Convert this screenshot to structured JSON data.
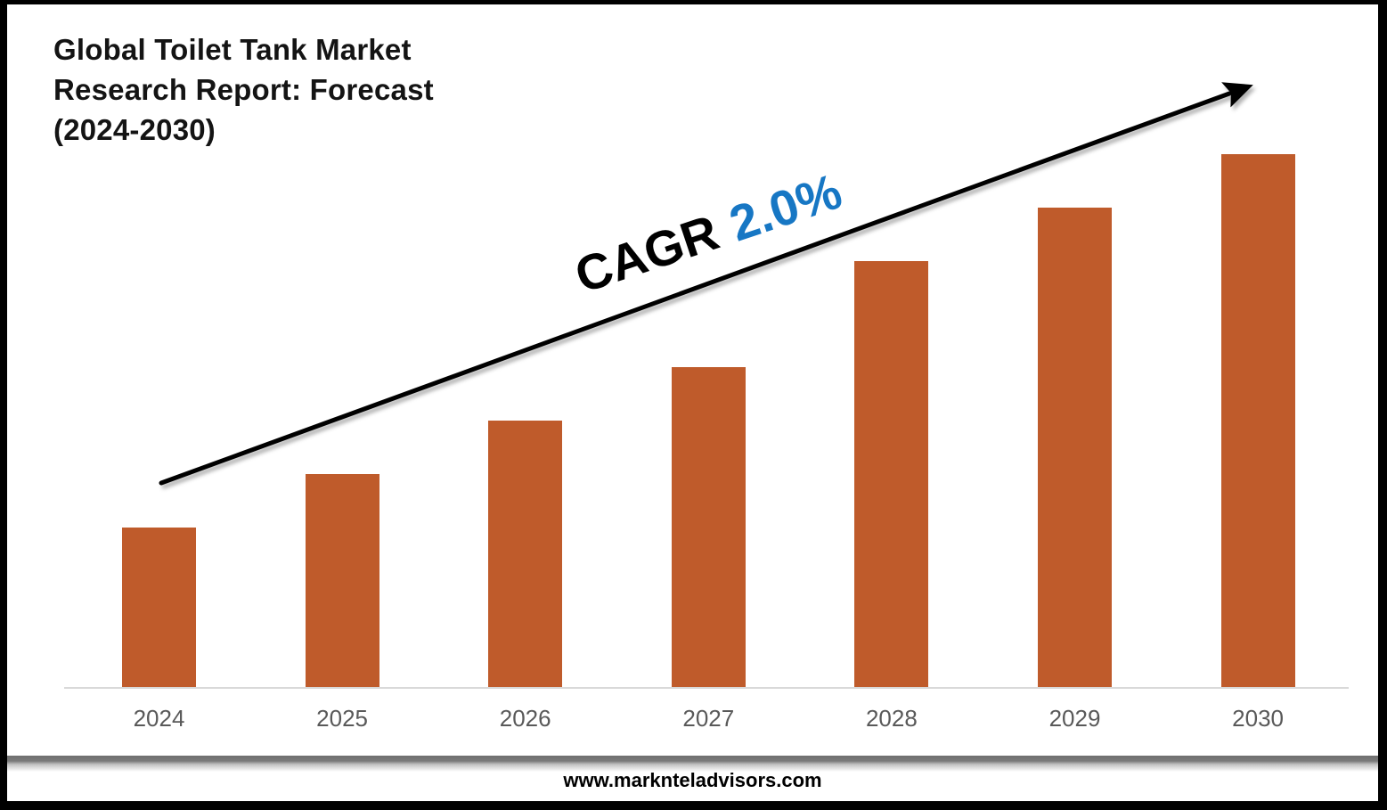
{
  "header": {
    "title_lines": [
      "Global Toilet Tank Market",
      "Research Report: Forecast",
      "(2024-2030)"
    ]
  },
  "annotation": {
    "prefix": "CAGR",
    "value": "2.0%"
  },
  "footer": {
    "url": "www.marknteladvisors.com"
  },
  "colors": {
    "bar": "#BF5B2B",
    "annotation_prefix": "#000000",
    "annotation_value": "#1777C4",
    "arrow": "#000000",
    "axis_label": "#595959",
    "axis_line": "#D9D9D9",
    "frame": "#000000"
  },
  "chart_data": {
    "type": "bar",
    "title": "Global Toilet Tank Market Research Report: Forecast (2024-2030)",
    "categories": [
      "2024",
      "2025",
      "2026",
      "2027",
      "2028",
      "2029",
      "2030"
    ],
    "values": [
      30,
      40,
      50,
      60,
      80,
      90,
      100
    ],
    "value_scale": "relative bar heights estimated from pixels; no y-axis, gridlines or data labels shown",
    "xlabel": "",
    "ylabel": "",
    "ylim": [
      0,
      100
    ],
    "grid": false,
    "legend": false,
    "annotations": [
      "CAGR 2.0%",
      "black upward trend arrow spanning 2024 to 2030"
    ]
  }
}
